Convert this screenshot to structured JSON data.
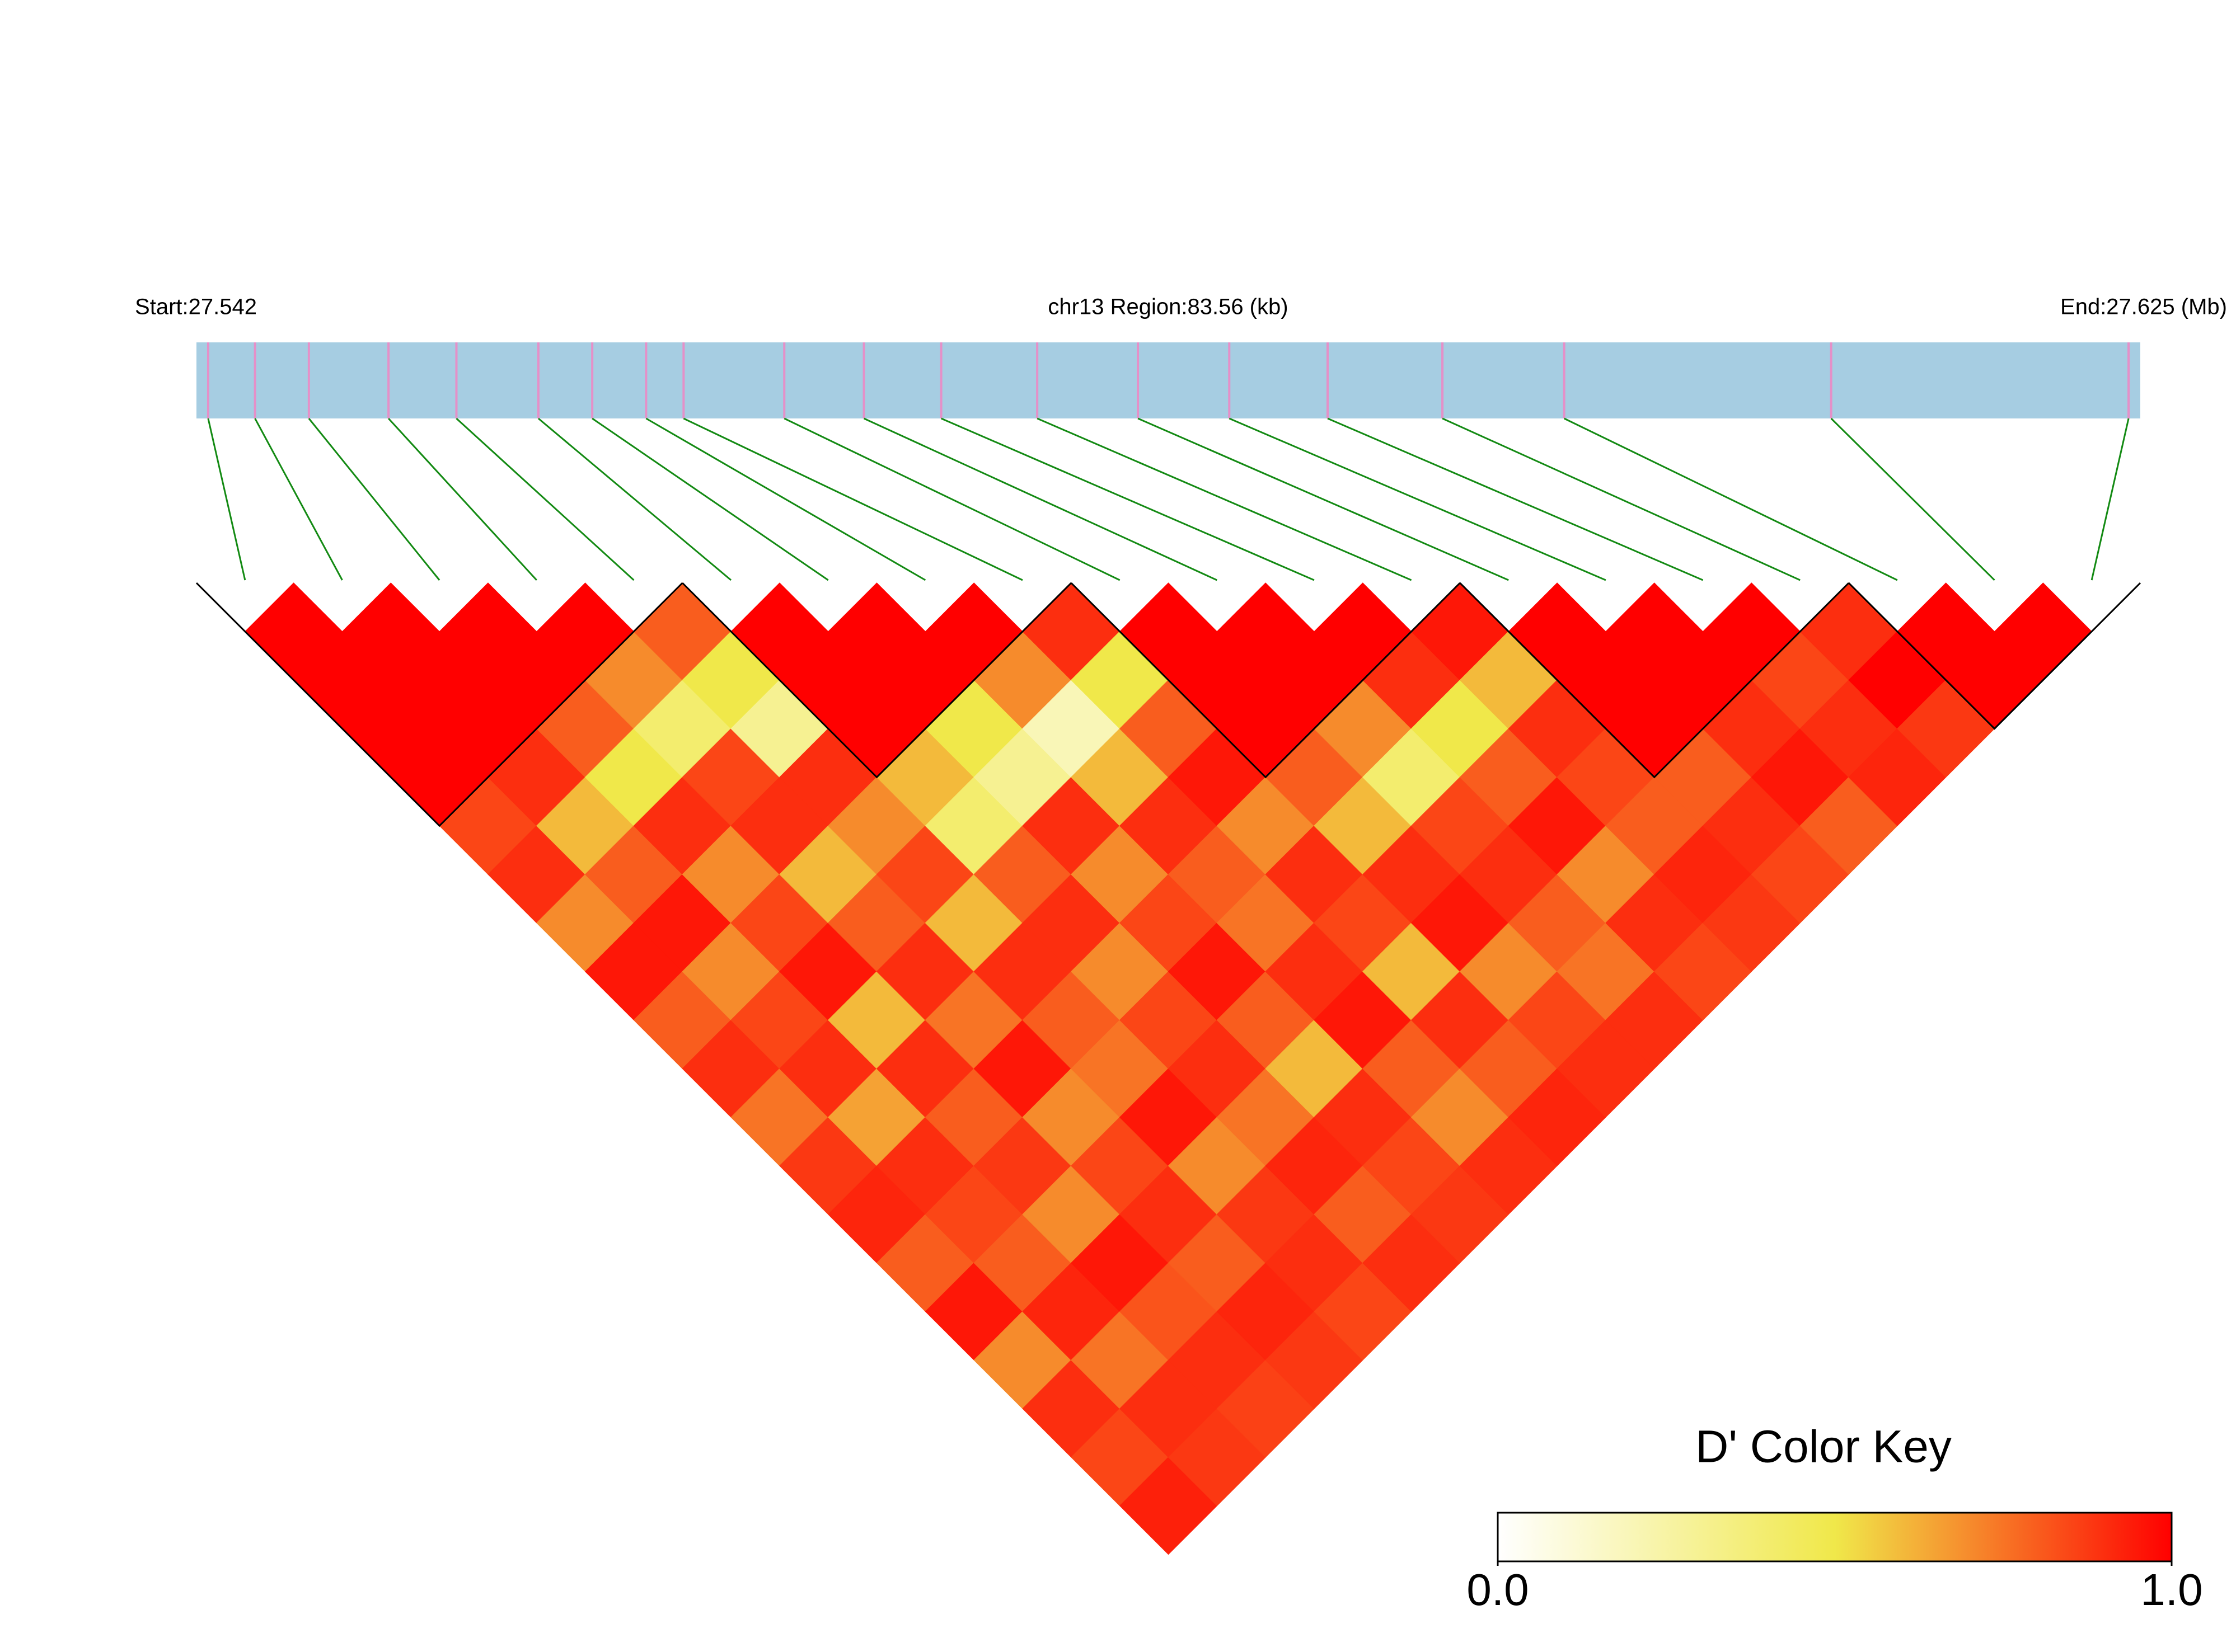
{
  "chart_data": {
    "type": "ld_heatmap",
    "start_label": "Start:27.542",
    "region_label": "chr13 Region:83.56 (kb)",
    "end_label": "End:27.625 (Mb)",
    "xlim": [
      27.542,
      27.625
    ],
    "snp_positions": [
      27.5425,
      27.5445,
      27.5468,
      27.5502,
      27.5531,
      27.5566,
      27.5589,
      27.5612,
      27.5628,
      27.5671,
      27.5705,
      27.5738,
      27.5779,
      27.5822,
      27.5861,
      27.5903,
      27.5952,
      27.6004,
      27.6118,
      27.6245
    ],
    "dprime": [
      [
        1,
        1,
        1,
        1,
        0.85,
        0.9,
        0.7,
        0.95,
        0.8,
        0.9,
        0.75,
        0.88,
        0.92,
        0.8,
        0.95,
        0.7,
        0.9,
        0.85,
        0.93
      ],
      [
        1,
        1,
        1,
        0.9,
        0.6,
        0.8,
        0.95,
        0.7,
        0.85,
        0.9,
        0.65,
        0.9,
        0.85,
        0.8,
        0.92,
        0.75,
        0.9,
        0.88
      ],
      [
        1,
        1,
        0.8,
        0.5,
        0.9,
        0.7,
        0.85,
        0.95,
        0.6,
        0.9,
        0.8,
        0.88,
        0.7,
        0.95,
        0.82,
        0.9,
        0.86
      ],
      [
        1,
        0.7,
        0.4,
        0.85,
        0.9,
        0.6,
        0.8,
        0.9,
        0.75,
        0.95,
        0.7,
        0.85,
        0.9,
        0.8,
        0.92,
        0.88
      ],
      [
        0.8,
        0.5,
        0.3,
        0.9,
        0.7,
        0.85,
        0.6,
        0.9,
        0.8,
        0.75,
        0.95,
        0.7,
        0.88,
        0.9,
        0.85
      ],
      [
        1,
        1,
        1,
        0.6,
        0.4,
        0.8,
        0.9,
        0.7,
        0.85,
        0.9,
        0.75,
        0.92,
        0.8,
        0.9
      ],
      [
        1,
        1,
        0.5,
        0.3,
        0.9,
        0.7,
        0.85,
        0.95,
        0.8,
        0.6,
        0.9,
        0.85,
        0.88
      ],
      [
        1,
        0.7,
        0.2,
        0.6,
        0.9,
        0.8,
        0.75,
        0.9,
        0.95,
        0.8,
        0.7,
        0.9
      ],
      [
        0.9,
        0.5,
        0.8,
        0.95,
        0.7,
        0.9,
        0.85,
        0.6,
        0.9,
        0.8,
        0.92
      ],
      [
        1,
        1,
        1,
        0.8,
        0.6,
        0.9,
        0.95,
        0.7,
        0.85,
        0.9
      ],
      [
        1,
        1,
        0.7,
        0.4,
        0.85,
        0.9,
        0.8,
        0.75,
        0.9
      ],
      [
        1,
        0.9,
        0.5,
        0.8,
        0.95,
        0.7,
        0.9,
        0.85
      ],
      [
        0.95,
        0.6,
        0.9,
        0.85,
        0.8,
        0.92,
        0.88
      ],
      [
        1,
        1,
        1,
        0.8,
        0.9,
        0.85
      ],
      [
        1,
        1,
        0.9,
        0.95,
        0.8
      ],
      [
        1,
        0.85,
        0.9,
        0.92
      ],
      [
        0.9,
        1,
        0.88
      ],
      [
        1,
        1
      ],
      [
        1
      ]
    ],
    "blocks": [
      [
        0,
        4
      ],
      [
        5,
        8
      ],
      [
        9,
        12
      ],
      [
        13,
        16
      ],
      [
        17,
        19
      ]
    ],
    "bar_color": "#a6cde2",
    "snp_mark_color": "#e590c8",
    "link_color": "#138a13",
    "block_outline_color": "#000000",
    "color_key_title": "D' Color Key",
    "color_key_colors": [
      "#ffffff",
      "#f0e84a",
      "#ff0000"
    ],
    "color_key_ticks": [
      {
        "value": 0,
        "label": "0.0"
      },
      {
        "value": 1,
        "label": "1.0"
      }
    ]
  }
}
